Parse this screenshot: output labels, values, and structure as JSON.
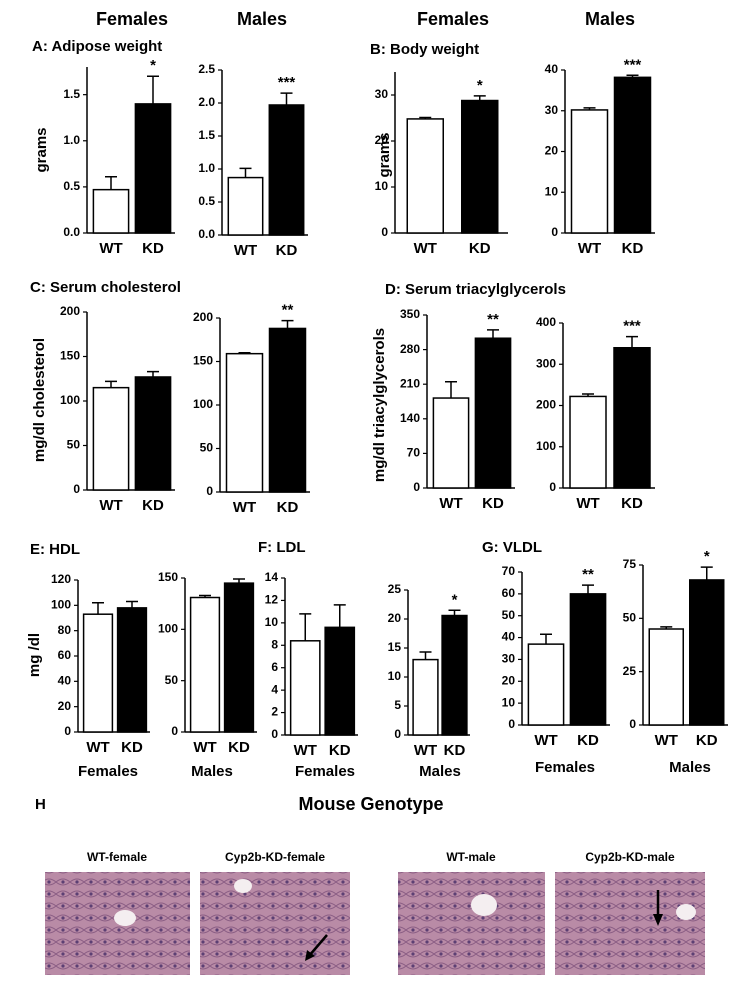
{
  "chart_data": [
    {
      "type": "bar",
      "title": "A:  Adipose weight",
      "group_label": "Females",
      "ylabel": "grams",
      "categories": [
        "WT",
        "KD"
      ],
      "values": [
        0.47,
        1.4
      ],
      "errors": [
        0.14,
        0.3
      ],
      "colors": [
        "#ffffff",
        "#000000"
      ],
      "annotation": "*",
      "ylim": [
        0,
        1.8
      ],
      "yticks": [
        {
          "value": 0,
          "label": "0.0"
        },
        {
          "value": 0.5,
          "label": "0.5"
        },
        {
          "value": 1,
          "label": "1.0"
        },
        {
          "value": 1.5,
          "label": "1.5"
        }
      ]
    },
    {
      "type": "bar",
      "group_label": "Males",
      "categories": [
        "WT",
        "KD"
      ],
      "values": [
        0.87,
        1.97
      ],
      "errors": [
        0.14,
        0.18
      ],
      "colors": [
        "#ffffff",
        "#000000"
      ],
      "annotation": "***",
      "ylim": [
        0,
        2.5
      ],
      "yticks": [
        {
          "value": 0,
          "label": "0.0"
        },
        {
          "value": 0.5,
          "label": "0.5"
        },
        {
          "value": 1,
          "label": "1.0"
        },
        {
          "value": 1.5,
          "label": "1.5"
        },
        {
          "value": 2,
          "label": "2.0"
        },
        {
          "value": 2.5,
          "label": "2.5"
        }
      ]
    },
    {
      "type": "bar",
      "title": "B:  Body weight",
      "group_label": "Females",
      "ylabel": "grams",
      "categories": [
        "WT",
        "KD"
      ],
      "values": [
        24.8,
        28.8
      ],
      "errors": [
        0.3,
        1.0
      ],
      "colors": [
        "#ffffff",
        "#000000"
      ],
      "annotation": "*",
      "ylim": [
        0,
        35
      ],
      "yticks": [
        0,
        10,
        20,
        30
      ]
    },
    {
      "type": "bar",
      "group_label": "Males",
      "categories": [
        "WT",
        "KD"
      ],
      "values": [
        30.2,
        38.2
      ],
      "errors": [
        0.5,
        0.5
      ],
      "colors": [
        "#ffffff",
        "#000000"
      ],
      "annotation": "***",
      "ylim": [
        0,
        40
      ],
      "yticks": [
        0,
        10,
        20,
        30,
        40
      ]
    },
    {
      "type": "bar",
      "title": "C: Serum cholesterol",
      "ylabel": "mg/dl cholesterol",
      "categories": [
        "WT",
        "KD"
      ],
      "values": [
        115,
        127
      ],
      "errors": [
        7,
        6
      ],
      "colors": [
        "#ffffff",
        "#000000"
      ],
      "ylim": [
        0,
        200
      ],
      "yticks": [
        0,
        50,
        100,
        150,
        200
      ]
    },
    {
      "type": "bar",
      "categories": [
        "WT",
        "KD"
      ],
      "values": [
        159,
        188
      ],
      "errors": [
        1,
        9
      ],
      "colors": [
        "#ffffff",
        "#000000"
      ],
      "annotation": "**",
      "ylim": [
        0,
        200
      ],
      "yticks": [
        0,
        50,
        100,
        150,
        200
      ]
    },
    {
      "type": "bar",
      "title": "D: Serum triacylglycerols",
      "ylabel": "mg/dl triacylglycerols",
      "categories": [
        "WT",
        "KD"
      ],
      "values": [
        182,
        303
      ],
      "errors": [
        33,
        17
      ],
      "colors": [
        "#ffffff",
        "#000000"
      ],
      "annotation": "**",
      "ylim": [
        0,
        350
      ],
      "yticks": [
        0,
        70,
        140,
        210,
        280,
        350
      ]
    },
    {
      "type": "bar",
      "categories": [
        "WT",
        "KD"
      ],
      "values": [
        222,
        340
      ],
      "errors": [
        6,
        27
      ],
      "colors": [
        "#ffffff",
        "#000000"
      ],
      "annotation": "***",
      "ylim": [
        0,
        400
      ],
      "yticks": [
        0,
        100,
        200,
        300,
        400
      ]
    },
    {
      "type": "bar",
      "title": "E:  HDL",
      "group_label": "Females",
      "ylabel": "mg /dl",
      "categories": [
        "WT",
        "KD"
      ],
      "values": [
        93,
        98
      ],
      "errors": [
        9,
        5
      ],
      "colors": [
        "#ffffff",
        "#000000"
      ],
      "ylim": [
        0,
        120
      ],
      "yticks": [
        0,
        20,
        40,
        60,
        80,
        100,
        120
      ]
    },
    {
      "type": "bar",
      "group_label": "Males",
      "categories": [
        "WT",
        "KD"
      ],
      "values": [
        131,
        145
      ],
      "errors": [
        2,
        4
      ],
      "colors": [
        "#ffffff",
        "#000000"
      ],
      "ylim": [
        0,
        150
      ],
      "yticks": [
        0,
        50,
        100,
        150
      ]
    },
    {
      "type": "bar",
      "title": "F: LDL",
      "group_label": "Females",
      "categories": [
        "WT",
        "KD"
      ],
      "values": [
        8.4,
        9.6
      ],
      "errors": [
        2.4,
        2.0
      ],
      "colors": [
        "#ffffff",
        "#000000"
      ],
      "ylim": [
        0,
        14
      ],
      "yticks": [
        0,
        2,
        4,
        6,
        8,
        10,
        12,
        14
      ]
    },
    {
      "type": "bar",
      "group_label": "Males",
      "categories": [
        "WT",
        "KD"
      ],
      "values": [
        13,
        20.6
      ],
      "errors": [
        1.3,
        0.9
      ],
      "colors": [
        "#ffffff",
        "#000000"
      ],
      "annotation": "*",
      "ylim": [
        0,
        25
      ],
      "yticks": [
        0,
        5,
        10,
        15,
        20,
        25
      ]
    },
    {
      "type": "bar",
      "title": "G: VLDL",
      "group_label": "Females",
      "categories": [
        "WT",
        "KD"
      ],
      "values": [
        37,
        60
      ],
      "errors": [
        4.5,
        4
      ],
      "colors": [
        "#ffffff",
        "#000000"
      ],
      "annotation": "**",
      "ylim": [
        0,
        70
      ],
      "yticks": [
        0,
        10,
        20,
        30,
        40,
        50,
        60,
        70
      ]
    },
    {
      "type": "bar",
      "group_label": "Males",
      "categories": [
        "WT",
        "KD"
      ],
      "values": [
        45,
        68
      ],
      "errors": [
        1,
        6
      ],
      "colors": [
        "#ffffff",
        "#000000"
      ],
      "annotation": "*",
      "ylim": [
        0,
        75
      ],
      "yticks": [
        0,
        25,
        50,
        75
      ]
    }
  ],
  "histology": {
    "panel_label": "H",
    "title": "Mouse Genotype",
    "images": [
      {
        "label": "WT-female"
      },
      {
        "label": "Cyp2b-KD-female"
      },
      {
        "label": "WT-male"
      },
      {
        "label": "Cyp2b-KD-male"
      }
    ]
  }
}
